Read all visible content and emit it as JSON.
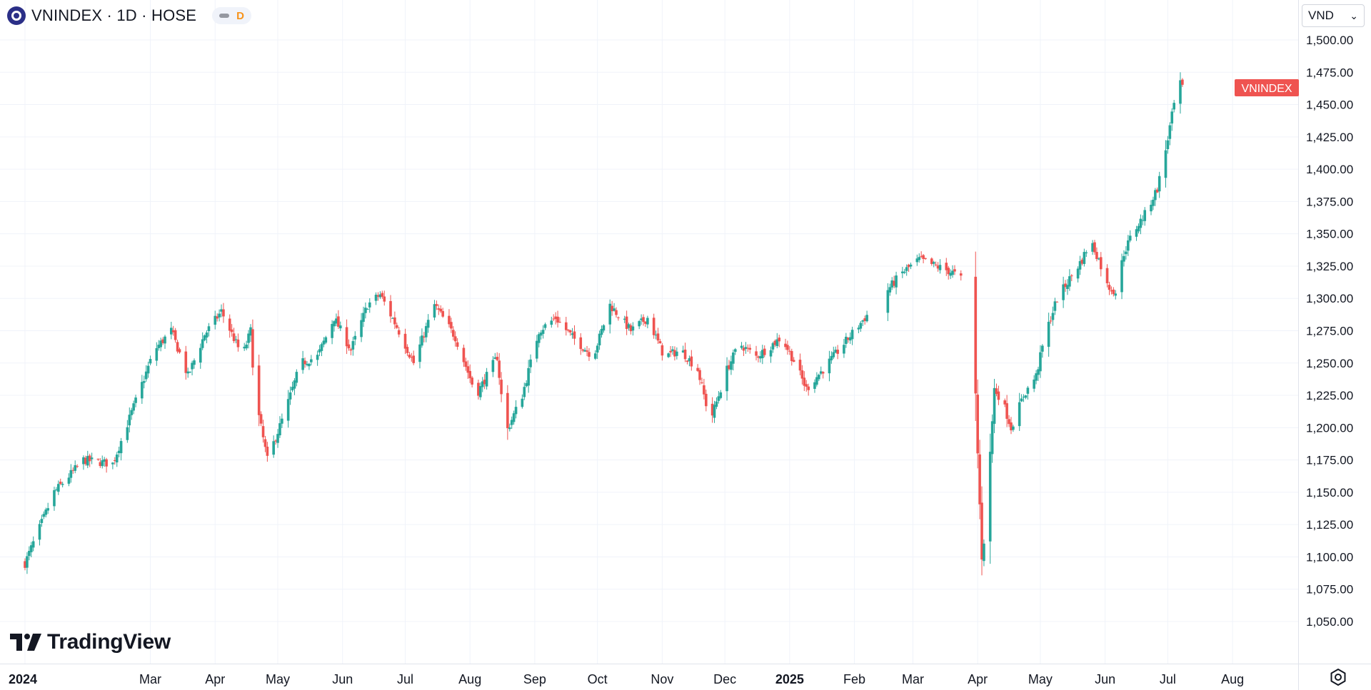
{
  "header": {
    "title": "VNINDEX · 1D · HOSE",
    "interval_badge": "D",
    "symbol_icon": "symbol-logo-icon"
  },
  "currency": {
    "value": "VND"
  },
  "branding": {
    "logo_text": "TradingView"
  },
  "colors": {
    "up": "#26a69a",
    "down": "#ef5350",
    "grid": "#f0f3fa",
    "axis_text": "#131722",
    "label_bg": "#ef5350"
  },
  "chart_data": {
    "type": "candlestick",
    "title": "VNINDEX · 1D · HOSE",
    "ylim": [
      1030,
      1520
    ],
    "y_ticks": [
      1050,
      1075,
      1100,
      1125,
      1150,
      1175,
      1200,
      1225,
      1250,
      1275,
      1300,
      1325,
      1350,
      1375,
      1400,
      1425,
      1450,
      1475,
      1500
    ],
    "y_tick_labels": [
      "1,050.00",
      "1,075.00",
      "1,100.00",
      "1,125.00",
      "1,150.00",
      "1,175.00",
      "1,200.00",
      "1,225.00",
      "1,250.00",
      "1,275.00",
      "1,300.00",
      "1,325.00",
      "1,350.00",
      "1,375.00",
      "1,400.00",
      "1,425.00",
      "1,450.00",
      "1,475.00",
      "1,500.00"
    ],
    "x_range_days": [
      0,
      593
    ],
    "x_ticks": [
      {
        "label": "2024",
        "day": 0,
        "bold": true
      },
      {
        "label": "Mar",
        "day": 60
      },
      {
        "label": "Apr",
        "day": 91
      },
      {
        "label": "May",
        "day": 121
      },
      {
        "label": "Jun",
        "day": 152
      },
      {
        "label": "Jul",
        "day": 182
      },
      {
        "label": "Aug",
        "day": 213
      },
      {
        "label": "Sep",
        "day": 244
      },
      {
        "label": "Oct",
        "day": 274
      },
      {
        "label": "Nov",
        "day": 305
      },
      {
        "label": "Dec",
        "day": 335
      },
      {
        "label": "2025",
        "day": 366,
        "bold": true
      },
      {
        "label": "Feb",
        "day": 397
      },
      {
        "label": "Mar",
        "day": 425
      },
      {
        "label": "Apr",
        "day": 456
      },
      {
        "label": "May",
        "day": 486
      },
      {
        "label": "Jun",
        "day": 517
      },
      {
        "label": "Jul",
        "day": 547
      },
      {
        "label": "Aug",
        "day": 578
      }
    ],
    "close_path": [
      [
        0,
        1095
      ],
      [
        14,
        1150
      ],
      [
        28,
        1175
      ],
      [
        42,
        1172
      ],
      [
        54,
        1225
      ],
      [
        62,
        1260
      ],
      [
        70,
        1275
      ],
      [
        78,
        1240
      ],
      [
        86,
        1272
      ],
      [
        94,
        1290
      ],
      [
        104,
        1255
      ],
      [
        108,
        1275
      ],
      [
        110,
        1225
      ],
      [
        116,
        1175
      ],
      [
        124,
        1210
      ],
      [
        132,
        1250
      ],
      [
        140,
        1255
      ],
      [
        148,
        1285
      ],
      [
        156,
        1260
      ],
      [
        164,
        1295
      ],
      [
        170,
        1303
      ],
      [
        178,
        1278
      ],
      [
        186,
        1250
      ],
      [
        196,
        1295
      ],
      [
        206,
        1270
      ],
      [
        216,
        1225
      ],
      [
        226,
        1255
      ],
      [
        230,
        1195
      ],
      [
        238,
        1225
      ],
      [
        246,
        1275
      ],
      [
        254,
        1285
      ],
      [
        262,
        1270
      ],
      [
        272,
        1255
      ],
      [
        280,
        1295
      ],
      [
        290,
        1275
      ],
      [
        298,
        1285
      ],
      [
        306,
        1255
      ],
      [
        314,
        1260
      ],
      [
        322,
        1245
      ],
      [
        328,
        1205
      ],
      [
        336,
        1245
      ],
      [
        342,
        1265
      ],
      [
        350,
        1255
      ],
      [
        356,
        1262
      ],
      [
        362,
        1270
      ],
      [
        368,
        1252
      ],
      [
        374,
        1230
      ],
      [
        382,
        1245
      ],
      [
        392,
        1265
      ],
      [
        402,
        1285
      ],
      [
        412,
        1305
      ],
      [
        420,
        1320
      ],
      [
        428,
        1330
      ],
      [
        436,
        1325
      ],
      [
        444,
        1320
      ],
      [
        448,
        1315
      ],
      [
        454,
        1270
      ],
      [
        456,
        1180
      ],
      [
        458,
        1100
      ],
      [
        460,
        1125
      ],
      [
        462,
        1180
      ],
      [
        464,
        1230
      ],
      [
        468,
        1220
      ],
      [
        472,
        1200
      ],
      [
        478,
        1225
      ],
      [
        484,
        1240
      ],
      [
        488,
        1270
      ],
      [
        494,
        1300
      ],
      [
        500,
        1315
      ],
      [
        506,
        1330
      ],
      [
        510,
        1345
      ],
      [
        514,
        1330
      ],
      [
        518,
        1310
      ],
      [
        522,
        1305
      ],
      [
        526,
        1335
      ],
      [
        530,
        1350
      ],
      [
        536,
        1365
      ],
      [
        542,
        1385
      ],
      [
        546,
        1415
      ],
      [
        550,
        1450
      ],
      [
        552,
        1468
      ],
      [
        554,
        1463
      ]
    ],
    "last_price_label": "VNINDEX",
    "last_price": 1463
  }
}
